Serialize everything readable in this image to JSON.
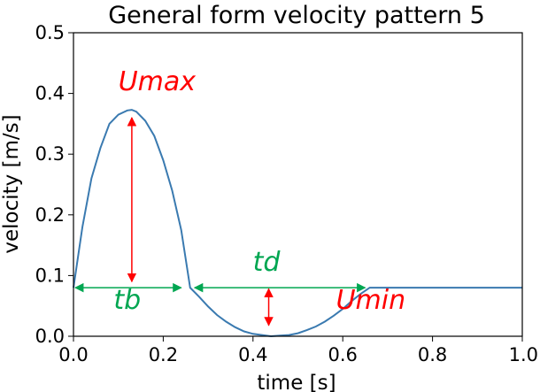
{
  "chart_data": {
    "type": "line",
    "title": "General form velocity pattern 5",
    "xlabel": "time [s]",
    "ylabel": "velocity [m/s]",
    "xlim": [
      0.0,
      1.0
    ],
    "ylim": [
      0.0,
      0.5
    ],
    "xticks": [
      0.0,
      0.2,
      0.4,
      0.6,
      0.8,
      1.0
    ],
    "yticks": [
      0.0,
      0.1,
      0.2,
      0.3,
      0.4,
      0.5
    ],
    "xtick_labels": [
      "0.0",
      "0.2",
      "0.4",
      "0.6",
      "0.8",
      "1.0"
    ],
    "ytick_labels": [
      "0.0",
      "0.1",
      "0.2",
      "0.3",
      "0.4",
      "0.5"
    ],
    "grid": false,
    "line_color": "#3a7ab0",
    "series": [
      {
        "x": [
          0.0,
          0.02,
          0.04,
          0.06,
          0.08,
          0.1,
          0.12,
          0.13,
          0.14,
          0.16,
          0.18,
          0.2,
          0.22,
          0.24,
          0.26,
          0.28,
          0.3,
          0.32,
          0.34,
          0.36,
          0.38,
          0.4,
          0.42,
          0.44,
          0.46,
          0.48,
          0.5,
          0.52,
          0.54,
          0.56,
          0.58,
          0.6,
          0.62,
          0.64,
          0.66,
          0.7,
          0.8,
          0.9,
          1.0
        ],
        "y": [
          0.08,
          0.18,
          0.26,
          0.31,
          0.35,
          0.365,
          0.372,
          0.373,
          0.37,
          0.355,
          0.33,
          0.29,
          0.24,
          0.175,
          0.08,
          0.065,
          0.049,
          0.035,
          0.024,
          0.015,
          0.008,
          0.004,
          0.002,
          0.0,
          0.001,
          0.002,
          0.005,
          0.01,
          0.016,
          0.024,
          0.034,
          0.045,
          0.058,
          0.07,
          0.08,
          0.08,
          0.08,
          0.08,
          0.08
        ]
      }
    ],
    "annotations": {
      "umax": {
        "text": "Umax",
        "color": "#ff0000",
        "label_x": 0.1,
        "label_y": 0.405,
        "arrow_x": 0.13,
        "arrow_y_from": 0.09,
        "arrow_y_to": 0.36
      },
      "tb": {
        "text": "tb",
        "color": "#00a651",
        "label_x": 0.12,
        "label_y": 0.045,
        "arrow_y": 0.08,
        "arrow_x_from": 0.0,
        "arrow_x_to": 0.24
      },
      "td": {
        "text": "td",
        "color": "#00a651",
        "label_x": 0.43,
        "label_y": 0.108,
        "arrow_y": 0.08,
        "arrow_x_from": 0.27,
        "arrow_x_to": 0.65
      },
      "umin": {
        "text": "Umin",
        "color": "#ff0000",
        "label_x": 0.585,
        "label_y": 0.045,
        "arrow_x": 0.435,
        "arrow_y_from": 0.018,
        "arrow_y_to": 0.078
      }
    }
  }
}
